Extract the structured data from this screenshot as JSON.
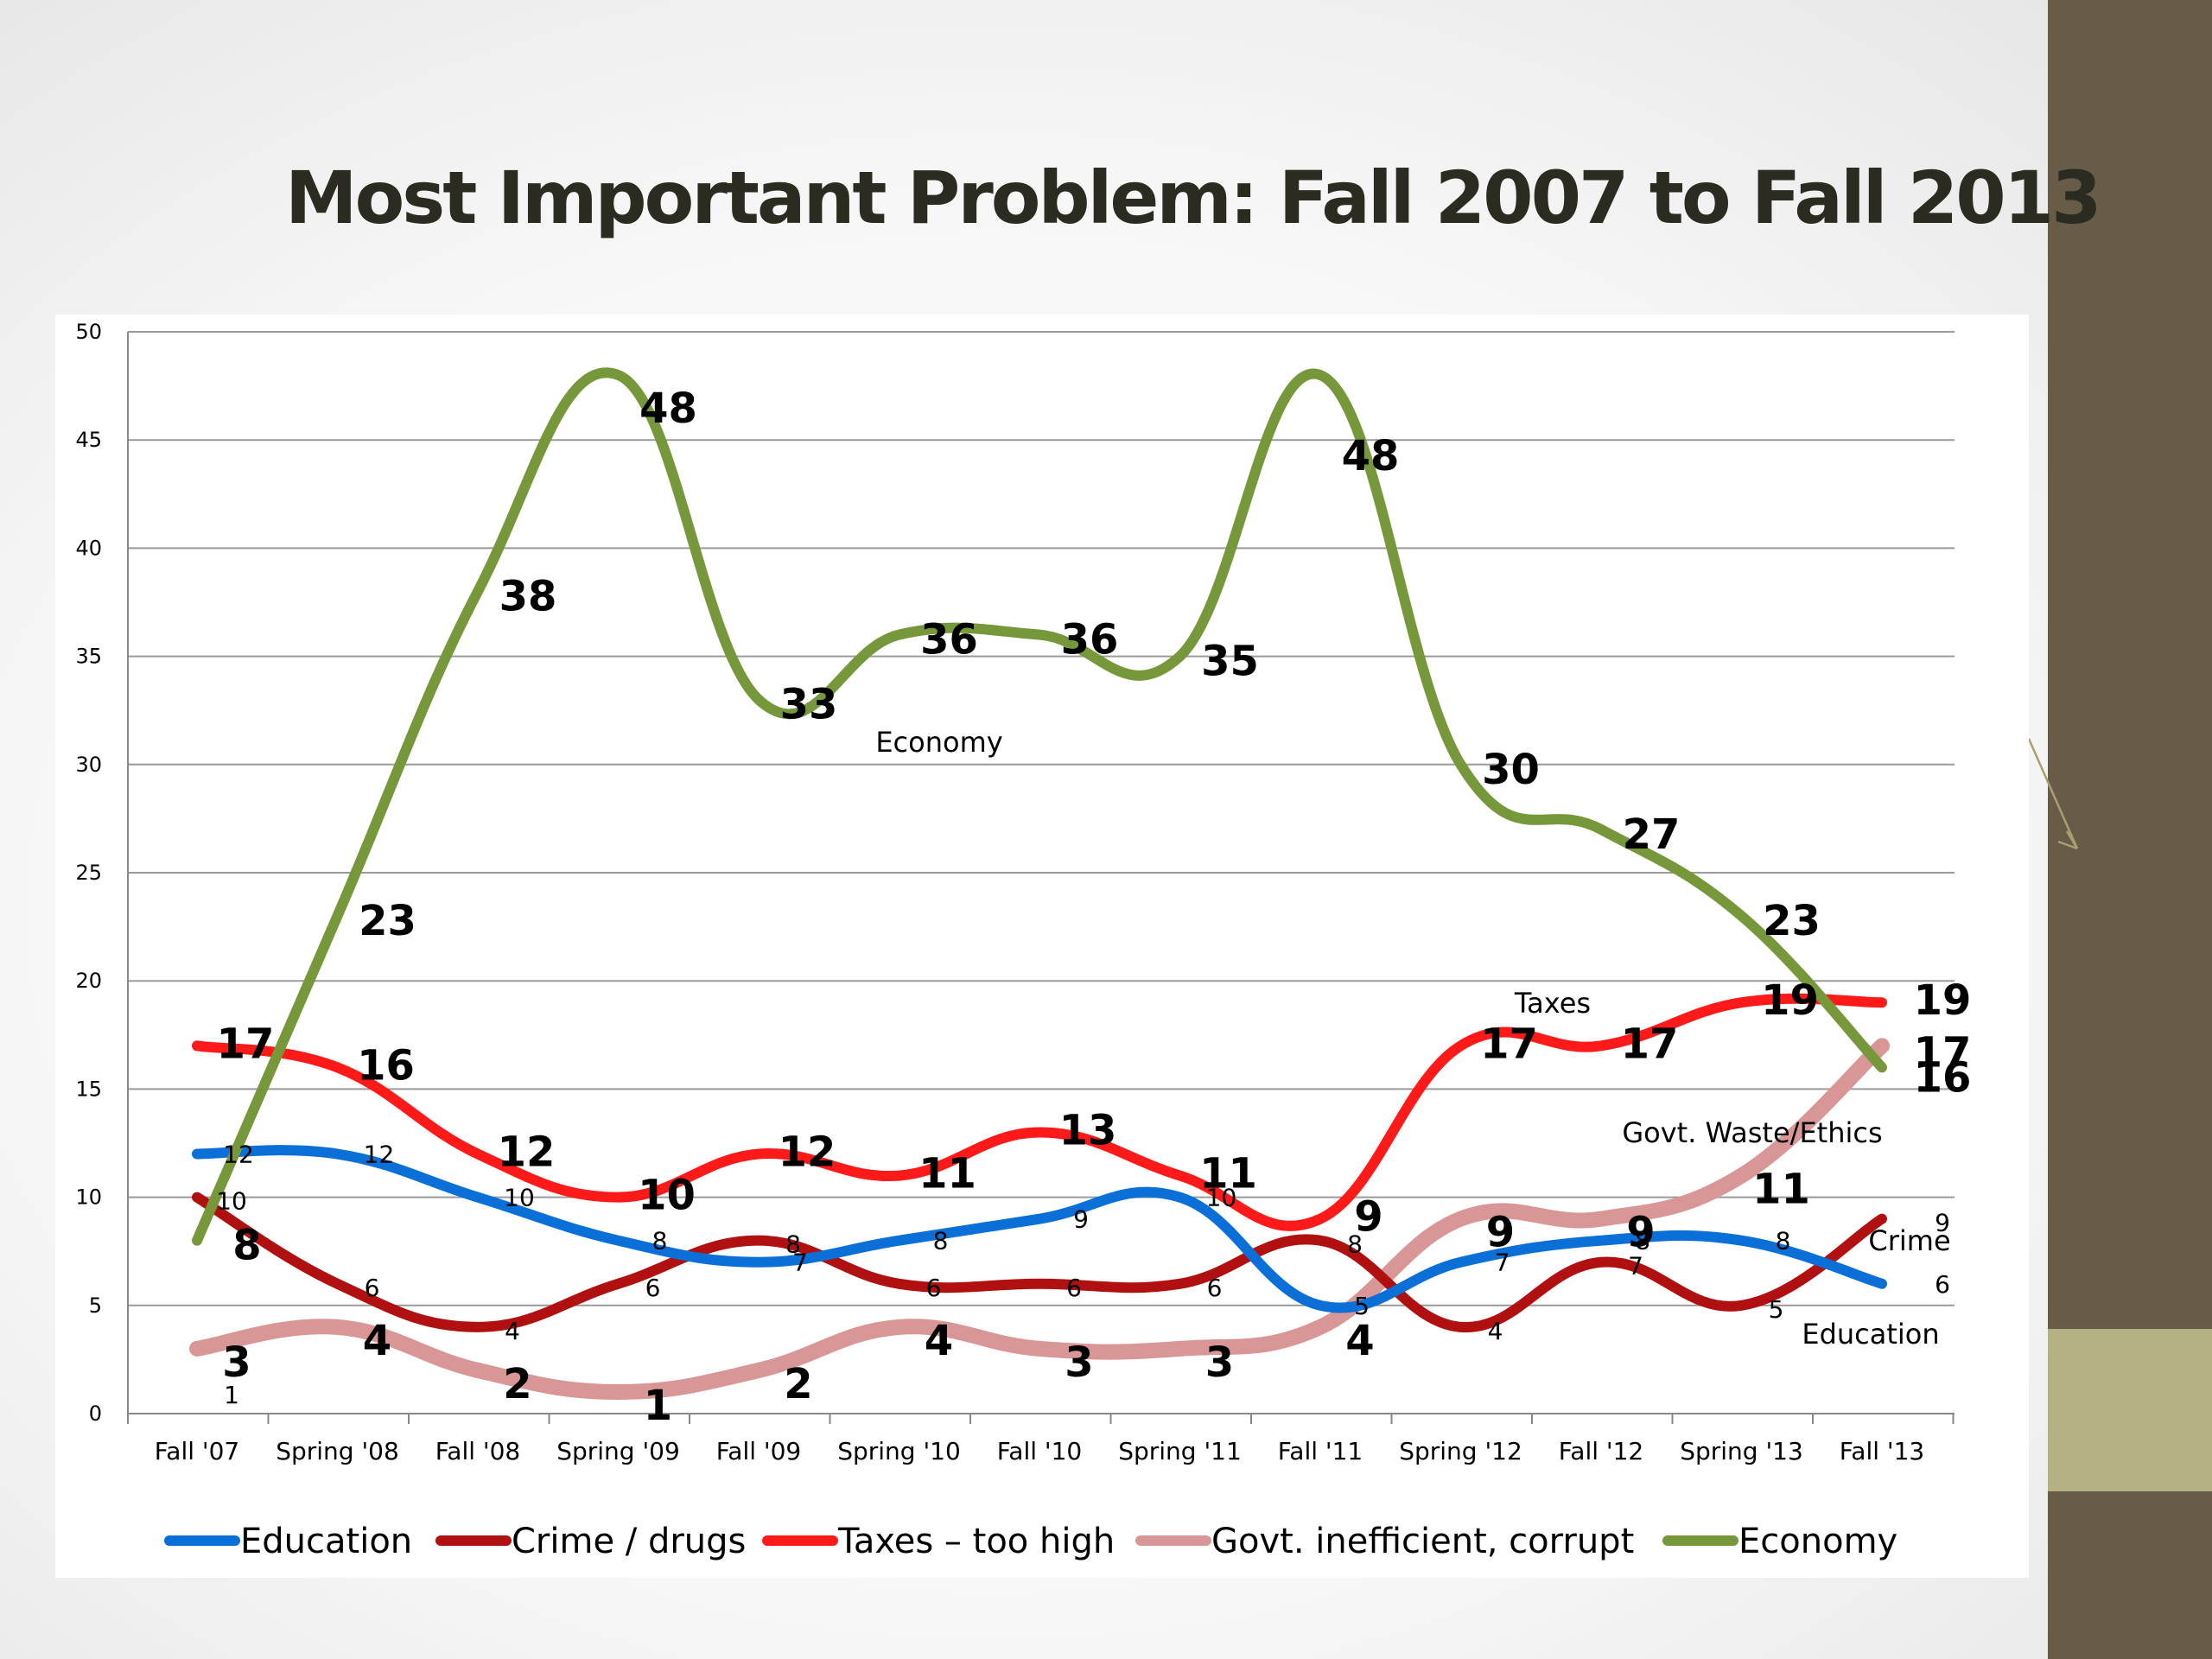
{
  "slide": {
    "title": "Most Important Problem: Fall 2007 to Fall 2013",
    "side_band_color": "#685c48",
    "side_stripe_color": "#b4b282"
  },
  "chart_data": {
    "type": "line",
    "title": "Most Important Problem: Fall 2007 to Fall 2013",
    "xlabel": "",
    "ylabel": "",
    "categories": [
      "Fall '07",
      "Spring '08",
      "Fall '08",
      "Spring '09",
      "Fall '09",
      "Spring '10",
      "Fall '10",
      "Spring '11",
      "Fall '11",
      "Spring '12",
      "Fall '12",
      "Spring '13",
      "Fall '13"
    ],
    "ylim": [
      0,
      50
    ],
    "yticks": [
      0,
      5,
      10,
      15,
      20,
      25,
      30,
      35,
      40,
      45,
      50
    ],
    "grid": true,
    "legend_position": "bottom",
    "series": [
      {
        "name": "Education",
        "color": "#0b6fd8",
        "values": [
          12,
          12,
          10,
          8,
          7,
          8,
          9,
          10,
          5,
          7,
          8,
          8,
          6
        ],
        "label_style": "small"
      },
      {
        "name": "Crime / drugs",
        "color": "#b01010",
        "values": [
          10,
          6,
          4,
          6,
          8,
          6,
          6,
          6,
          8,
          4,
          7,
          5,
          9
        ],
        "label_style": "small"
      },
      {
        "name": "Taxes – too high",
        "color": "#ff1a1a",
        "values": [
          17,
          16,
          12,
          10,
          12,
          11,
          13,
          11,
          9,
          17,
          17,
          19,
          19
        ],
        "label_style": "bold"
      },
      {
        "name": "Govt. inefficient, corrupt",
        "color": "#d89696",
        "values": [
          3,
          4,
          2,
          1,
          2,
          4,
          3,
          3,
          4,
          9,
          9,
          11,
          17
        ],
        "label_style": "bold"
      },
      {
        "name": "Economy",
        "color": "#76973a",
        "values": [
          8,
          23,
          38,
          48,
          33,
          36,
          36,
          35,
          48,
          30,
          27,
          23,
          16
        ],
        "label_style": "bold"
      }
    ],
    "annotations": [
      "Economy",
      "Taxes",
      "Govt. Waste/Ethics",
      "Crime",
      "Education",
      "1"
    ]
  }
}
